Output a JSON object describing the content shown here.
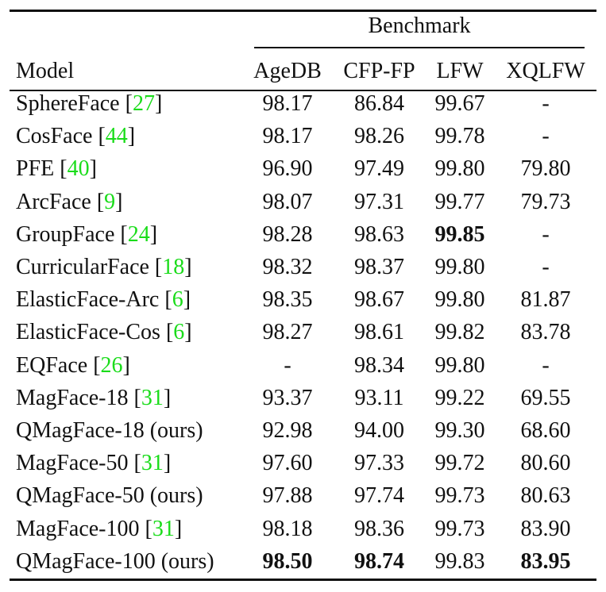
{
  "table": {
    "group_header": "Benchmark",
    "model_header": "Model",
    "columns": [
      "AgeDB",
      "CFP-FP",
      "LFW",
      "XQLFW"
    ],
    "rows": [
      {
        "model": "SphereFace",
        "ref": "27",
        "suffix": "",
        "values": [
          "98.17",
          "86.84",
          "99.67",
          "-"
        ],
        "bold": []
      },
      {
        "model": "CosFace",
        "ref": "44",
        "suffix": "",
        "values": [
          "98.17",
          "98.26",
          "99.78",
          "-"
        ],
        "bold": []
      },
      {
        "model": "PFE",
        "ref": "40",
        "suffix": "",
        "values": [
          "96.90",
          "97.49",
          "99.80",
          "79.80"
        ],
        "bold": []
      },
      {
        "model": "ArcFace",
        "ref": "9",
        "suffix": "",
        "values": [
          "98.07",
          "97.31",
          "99.77",
          "79.73"
        ],
        "bold": []
      },
      {
        "model": "GroupFace",
        "ref": "24",
        "suffix": "",
        "values": [
          "98.28",
          "98.63",
          "99.85",
          "-"
        ],
        "bold": [
          2
        ]
      },
      {
        "model": "CurricularFace",
        "ref": "18",
        "suffix": "",
        "values": [
          "98.32",
          "98.37",
          "99.80",
          "-"
        ],
        "bold": []
      },
      {
        "model": "ElasticFace-Arc",
        "ref": "6",
        "suffix": "",
        "values": [
          "98.35",
          "98.67",
          "99.80",
          "81.87"
        ],
        "bold": []
      },
      {
        "model": "ElasticFace-Cos",
        "ref": "6",
        "suffix": "",
        "values": [
          "98.27",
          "98.61",
          "99.82",
          "83.78"
        ],
        "bold": []
      },
      {
        "model": "EQFace",
        "ref": "26",
        "suffix": "",
        "values": [
          "-",
          "98.34",
          "99.80",
          "-"
        ],
        "bold": []
      },
      {
        "model": "MagFace-18",
        "ref": "31",
        "suffix": "",
        "values": [
          "93.37",
          "93.11",
          "99.22",
          "69.55"
        ],
        "bold": []
      },
      {
        "model": "QMagFace-18 (ours)",
        "ref": "",
        "suffix": "",
        "values": [
          "92.98",
          "94.00",
          "99.30",
          "68.60"
        ],
        "bold": []
      },
      {
        "model": "MagFace-50",
        "ref": "31",
        "suffix": "",
        "values": [
          "97.60",
          "97.33",
          "99.72",
          "80.60"
        ],
        "bold": []
      },
      {
        "model": "QMagFace-50 (ours)",
        "ref": "",
        "suffix": "",
        "values": [
          "97.88",
          "97.74",
          "99.73",
          "80.63"
        ],
        "bold": []
      },
      {
        "model": "MagFace-100",
        "ref": "31",
        "suffix": "",
        "values": [
          "98.18",
          "98.36",
          "99.73",
          "83.90"
        ],
        "bold": []
      },
      {
        "model": "QMagFace-100 (ours)",
        "ref": "",
        "suffix": "",
        "values": [
          "98.50",
          "98.74",
          "99.83",
          "83.95"
        ],
        "bold": [
          0,
          1,
          3
        ]
      }
    ]
  }
}
